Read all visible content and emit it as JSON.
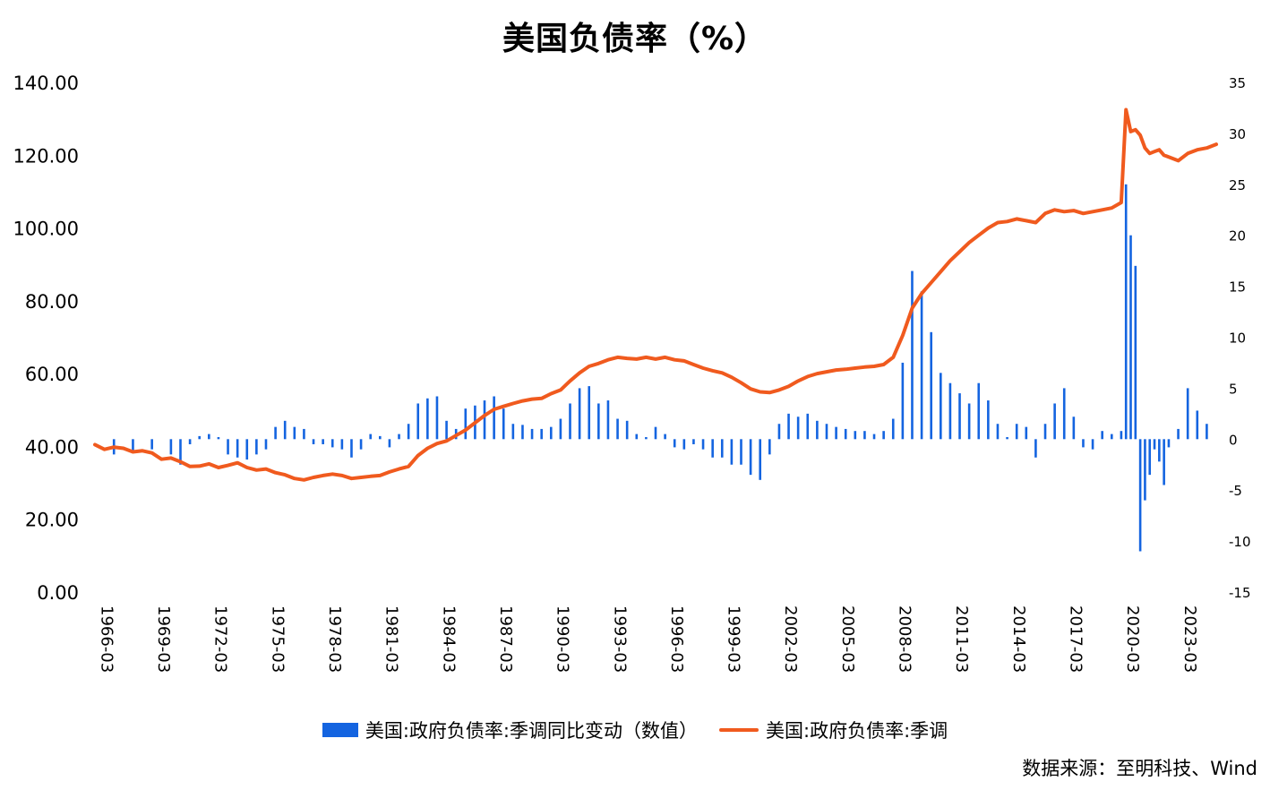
{
  "title": "美国负债率（%）",
  "source": "数据来源：至明科技、Wind",
  "chart_data": {
    "type": "bar+line",
    "x_ticks": [
      "1966-03",
      "1969-03",
      "1972-03",
      "1975-03",
      "1978-03",
      "1981-03",
      "1984-03",
      "1987-03",
      "1990-03",
      "1993-03",
      "1996-03",
      "1999-03",
      "2002-03",
      "2005-03",
      "2008-03",
      "2011-03",
      "2014-03",
      "2017-03",
      "2020-03",
      "2023-03"
    ],
    "y_left": {
      "ticks": [
        "0.00",
        "20.00",
        "40.00",
        "60.00",
        "80.00",
        "100.00",
        "120.00",
        "140.00"
      ],
      "min": 0,
      "max": 140
    },
    "y_right": {
      "ticks": [
        "-15",
        "-10",
        "-5",
        "0",
        "5",
        "10",
        "15",
        "20",
        "25",
        "30",
        "35"
      ],
      "min": -15,
      "max": 35
    },
    "x_range": [
      1966.0,
      2025.0
    ],
    "series": [
      {
        "name": "美国:政府负债率:季调同比变动（数值）",
        "type": "bar",
        "axis": "right",
        "color": "#1464e0",
        "points": [
          [
            1967.0,
            -1.5
          ],
          [
            1968.0,
            -1.2
          ],
          [
            1969.0,
            -1.0
          ],
          [
            1970.0,
            -1.5
          ],
          [
            1970.5,
            -2.5
          ],
          [
            1971.0,
            -0.5
          ],
          [
            1971.5,
            0.3
          ],
          [
            1972.0,
            0.5
          ],
          [
            1972.5,
            0.2
          ],
          [
            1973.0,
            -1.5
          ],
          [
            1973.5,
            -1.8
          ],
          [
            1974.0,
            -2.0
          ],
          [
            1974.5,
            -1.5
          ],
          [
            1975.0,
            -1.0
          ],
          [
            1975.5,
            1.2
          ],
          [
            1976.0,
            1.8
          ],
          [
            1976.5,
            1.2
          ],
          [
            1977.0,
            1.0
          ],
          [
            1977.5,
            -0.5
          ],
          [
            1978.0,
            -0.5
          ],
          [
            1978.5,
            -0.8
          ],
          [
            1979.0,
            -1.0
          ],
          [
            1979.5,
            -1.8
          ],
          [
            1980.0,
            -1.0
          ],
          [
            1980.5,
            0.5
          ],
          [
            1981.0,
            0.3
          ],
          [
            1981.5,
            -0.8
          ],
          [
            1982.0,
            0.5
          ],
          [
            1982.5,
            1.5
          ],
          [
            1983.0,
            3.5
          ],
          [
            1983.5,
            4.0
          ],
          [
            1984.0,
            4.2
          ],
          [
            1984.5,
            1.8
          ],
          [
            1985.0,
            1.0
          ],
          [
            1985.5,
            3.0
          ],
          [
            1986.0,
            3.3
          ],
          [
            1986.5,
            3.8
          ],
          [
            1987.0,
            4.2
          ],
          [
            1987.5,
            3.0
          ],
          [
            1988.0,
            1.5
          ],
          [
            1988.5,
            1.4
          ],
          [
            1989.0,
            1.0
          ],
          [
            1989.5,
            1.0
          ],
          [
            1990.0,
            1.2
          ],
          [
            1990.5,
            2.0
          ],
          [
            1991.0,
            3.5
          ],
          [
            1991.5,
            5.0
          ],
          [
            1992.0,
            5.2
          ],
          [
            1992.5,
            3.5
          ],
          [
            1993.0,
            3.8
          ],
          [
            1993.5,
            2.0
          ],
          [
            1994.0,
            1.8
          ],
          [
            1994.5,
            0.5
          ],
          [
            1995.0,
            0.2
          ],
          [
            1995.5,
            1.2
          ],
          [
            1996.0,
            0.5
          ],
          [
            1996.5,
            -0.8
          ],
          [
            1997.0,
            -1.0
          ],
          [
            1997.5,
            -0.5
          ],
          [
            1998.0,
            -1.0
          ],
          [
            1998.5,
            -1.8
          ],
          [
            1999.0,
            -1.8
          ],
          [
            1999.5,
            -2.5
          ],
          [
            2000.0,
            -2.5
          ],
          [
            2000.5,
            -3.5
          ],
          [
            2001.0,
            -4.0
          ],
          [
            2001.5,
            -1.5
          ],
          [
            2002.0,
            1.5
          ],
          [
            2002.5,
            2.5
          ],
          [
            2003.0,
            2.2
          ],
          [
            2003.5,
            2.5
          ],
          [
            2004.0,
            1.8
          ],
          [
            2004.5,
            1.5
          ],
          [
            2005.0,
            1.2
          ],
          [
            2005.5,
            1.0
          ],
          [
            2006.0,
            0.8
          ],
          [
            2006.5,
            0.8
          ],
          [
            2007.0,
            0.5
          ],
          [
            2007.5,
            0.8
          ],
          [
            2008.0,
            2.0
          ],
          [
            2008.5,
            7.5
          ],
          [
            2009.0,
            16.5
          ],
          [
            2009.5,
            14.5
          ],
          [
            2010.0,
            10.5
          ],
          [
            2010.5,
            6.5
          ],
          [
            2011.0,
            5.5
          ],
          [
            2011.5,
            4.5
          ],
          [
            2012.0,
            3.5
          ],
          [
            2012.5,
            5.5
          ],
          [
            2013.0,
            3.8
          ],
          [
            2013.5,
            1.5
          ],
          [
            2014.0,
            0.2
          ],
          [
            2014.5,
            1.5
          ],
          [
            2015.0,
            1.2
          ],
          [
            2015.5,
            -1.8
          ],
          [
            2016.0,
            1.5
          ],
          [
            2016.5,
            3.5
          ],
          [
            2017.0,
            5.0
          ],
          [
            2017.5,
            2.2
          ],
          [
            2018.0,
            -0.8
          ],
          [
            2018.5,
            -1.0
          ],
          [
            2019.0,
            0.8
          ],
          [
            2019.5,
            0.5
          ],
          [
            2020.0,
            0.8
          ],
          [
            2020.25,
            25.0
          ],
          [
            2020.5,
            20.0
          ],
          [
            2020.75,
            17.0
          ],
          [
            2021.0,
            -11.0
          ],
          [
            2021.25,
            -6.0
          ],
          [
            2021.5,
            -3.5
          ],
          [
            2021.75,
            -1.0
          ],
          [
            2022.0,
            -2.2
          ],
          [
            2022.25,
            -4.5
          ],
          [
            2022.5,
            -0.8
          ],
          [
            2023.0,
            1.0
          ],
          [
            2023.5,
            5.0
          ],
          [
            2024.0,
            2.8
          ],
          [
            2024.5,
            1.5
          ]
        ]
      },
      {
        "name": "美国:政府负债率:季调",
        "type": "line",
        "axis": "left",
        "color": "#f05a1e",
        "points": [
          [
            1966.0,
            40.5
          ],
          [
            1966.5,
            39.2
          ],
          [
            1967.0,
            39.8
          ],
          [
            1967.5,
            39.5
          ],
          [
            1968.0,
            38.5
          ],
          [
            1968.5,
            38.8
          ],
          [
            1969.0,
            38.2
          ],
          [
            1969.5,
            36.5
          ],
          [
            1970.0,
            36.8
          ],
          [
            1970.5,
            35.8
          ],
          [
            1971.0,
            34.5
          ],
          [
            1971.5,
            34.6
          ],
          [
            1972.0,
            35.2
          ],
          [
            1972.5,
            34.2
          ],
          [
            1973.0,
            34.8
          ],
          [
            1973.5,
            35.5
          ],
          [
            1974.0,
            34.2
          ],
          [
            1974.5,
            33.5
          ],
          [
            1975.0,
            33.8
          ],
          [
            1975.5,
            32.8
          ],
          [
            1976.0,
            32.2
          ],
          [
            1976.5,
            31.2
          ],
          [
            1977.0,
            30.8
          ],
          [
            1977.5,
            31.5
          ],
          [
            1978.0,
            32.0
          ],
          [
            1978.5,
            32.4
          ],
          [
            1979.0,
            32.0
          ],
          [
            1979.5,
            31.2
          ],
          [
            1980.0,
            31.5
          ],
          [
            1980.5,
            31.8
          ],
          [
            1981.0,
            32.0
          ],
          [
            1981.5,
            33.0
          ],
          [
            1982.0,
            33.8
          ],
          [
            1982.5,
            34.5
          ],
          [
            1983.0,
            37.5
          ],
          [
            1983.5,
            39.5
          ],
          [
            1984.0,
            40.8
          ],
          [
            1984.5,
            41.5
          ],
          [
            1985.0,
            43.0
          ],
          [
            1985.5,
            44.5
          ],
          [
            1986.0,
            46.5
          ],
          [
            1986.5,
            48.5
          ],
          [
            1987.0,
            50.2
          ],
          [
            1987.5,
            51.0
          ],
          [
            1988.0,
            51.8
          ],
          [
            1988.5,
            52.5
          ],
          [
            1989.0,
            53.0
          ],
          [
            1989.5,
            53.2
          ],
          [
            1990.0,
            54.5
          ],
          [
            1990.5,
            55.5
          ],
          [
            1991.0,
            58.0
          ],
          [
            1991.5,
            60.2
          ],
          [
            1992.0,
            62.0
          ],
          [
            1992.5,
            62.8
          ],
          [
            1993.0,
            63.8
          ],
          [
            1993.5,
            64.5
          ],
          [
            1994.0,
            64.2
          ],
          [
            1994.5,
            64.0
          ],
          [
            1995.0,
            64.5
          ],
          [
            1995.5,
            64.0
          ],
          [
            1996.0,
            64.5
          ],
          [
            1996.5,
            63.8
          ],
          [
            1997.0,
            63.5
          ],
          [
            1997.5,
            62.5
          ],
          [
            1998.0,
            61.5
          ],
          [
            1998.5,
            60.8
          ],
          [
            1999.0,
            60.2
          ],
          [
            1999.5,
            59.0
          ],
          [
            2000.0,
            57.5
          ],
          [
            2000.5,
            55.8
          ],
          [
            2001.0,
            55.0
          ],
          [
            2001.5,
            54.8
          ],
          [
            2002.0,
            55.5
          ],
          [
            2002.5,
            56.5
          ],
          [
            2003.0,
            58.0
          ],
          [
            2003.5,
            59.2
          ],
          [
            2004.0,
            60.0
          ],
          [
            2004.5,
            60.5
          ],
          [
            2005.0,
            61.0
          ],
          [
            2005.5,
            61.2
          ],
          [
            2006.0,
            61.5
          ],
          [
            2006.5,
            61.8
          ],
          [
            2007.0,
            62.0
          ],
          [
            2007.5,
            62.5
          ],
          [
            2008.0,
            64.5
          ],
          [
            2008.5,
            70.5
          ],
          [
            2009.0,
            78.0
          ],
          [
            2009.5,
            82.0
          ],
          [
            2010.0,
            85.0
          ],
          [
            2010.5,
            88.0
          ],
          [
            2011.0,
            91.0
          ],
          [
            2011.5,
            93.5
          ],
          [
            2012.0,
            96.0
          ],
          [
            2012.5,
            98.0
          ],
          [
            2013.0,
            100.0
          ],
          [
            2013.5,
            101.5
          ],
          [
            2014.0,
            101.8
          ],
          [
            2014.5,
            102.5
          ],
          [
            2015.0,
            102.0
          ],
          [
            2015.5,
            101.5
          ],
          [
            2016.0,
            104.0
          ],
          [
            2016.5,
            105.0
          ],
          [
            2017.0,
            104.5
          ],
          [
            2017.5,
            104.8
          ],
          [
            2018.0,
            104.0
          ],
          [
            2018.5,
            104.5
          ],
          [
            2019.0,
            105.0
          ],
          [
            2019.5,
            105.5
          ],
          [
            2020.0,
            107.0
          ],
          [
            2020.25,
            132.5
          ],
          [
            2020.5,
            126.5
          ],
          [
            2020.75,
            127.0
          ],
          [
            2021.0,
            125.5
          ],
          [
            2021.25,
            122.0
          ],
          [
            2021.5,
            120.5
          ],
          [
            2021.75,
            121.0
          ],
          [
            2022.0,
            121.5
          ],
          [
            2022.25,
            120.0
          ],
          [
            2022.5,
            119.5
          ],
          [
            2023.0,
            118.5
          ],
          [
            2023.5,
            120.5
          ],
          [
            2024.0,
            121.5
          ],
          [
            2024.5,
            122.0
          ],
          [
            2025.0,
            123.0
          ]
        ]
      }
    ]
  }
}
